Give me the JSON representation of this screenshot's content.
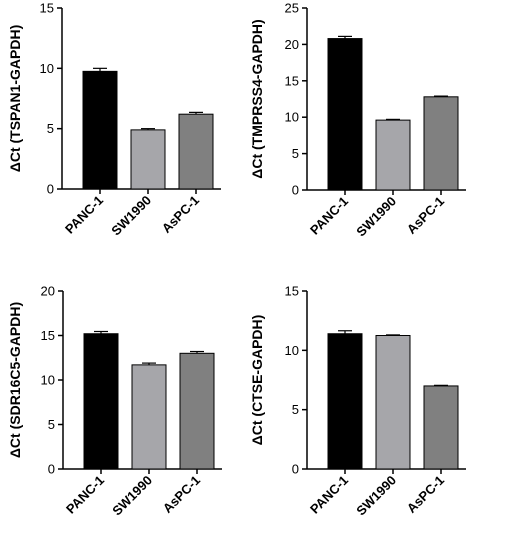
{
  "colors": {
    "PANC-1": "#000000",
    "SW1990": "#a6a6aa",
    "AsPC-1": "#808080"
  },
  "chart_data": [
    {
      "type": "bar",
      "categories": [
        "PANC-1",
        "SW1990",
        "AsPC-1"
      ],
      "values": [
        9.75,
        4.9,
        6.2
      ],
      "errors": [
        0.25,
        0.1,
        0.15
      ],
      "ylabel": "ΔCt (TSPAN1-GAPDH)",
      "ylim": [
        0,
        15
      ],
      "yticks": [
        0,
        5,
        10,
        15
      ],
      "grid": false
    },
    {
      "type": "bar",
      "categories": [
        "PANC-1",
        "SW1990",
        "AsPC-1"
      ],
      "values": [
        20.8,
        9.6,
        12.8
      ],
      "errors": [
        0.3,
        0.1,
        0.1
      ],
      "ylabel": "ΔCt (TMPRSS4-GAPDH)",
      "ylim": [
        0,
        25
      ],
      "yticks": [
        0,
        5,
        10,
        15,
        20,
        25
      ],
      "grid": false
    },
    {
      "type": "bar",
      "categories": [
        "PANC-1",
        "SW1990",
        "AsPC-1"
      ],
      "values": [
        15.2,
        11.7,
        13.0
      ],
      "errors": [
        0.25,
        0.2,
        0.2
      ],
      "ylabel": "ΔCt (SDR16C5-GAPDH)",
      "ylim": [
        0,
        20
      ],
      "yticks": [
        0,
        5,
        10,
        15,
        20
      ],
      "grid": false
    },
    {
      "type": "bar",
      "categories": [
        "PANC-1",
        "SW1990",
        "AsPC-1"
      ],
      "values": [
        11.4,
        11.25,
        7.0
      ],
      "errors": [
        0.25,
        0.05,
        0.05
      ],
      "ylabel": "ΔCt (CTSE-GAPDH)",
      "ylim": [
        0,
        15
      ],
      "yticks": [
        0,
        5,
        10,
        15
      ],
      "grid": false
    }
  ]
}
